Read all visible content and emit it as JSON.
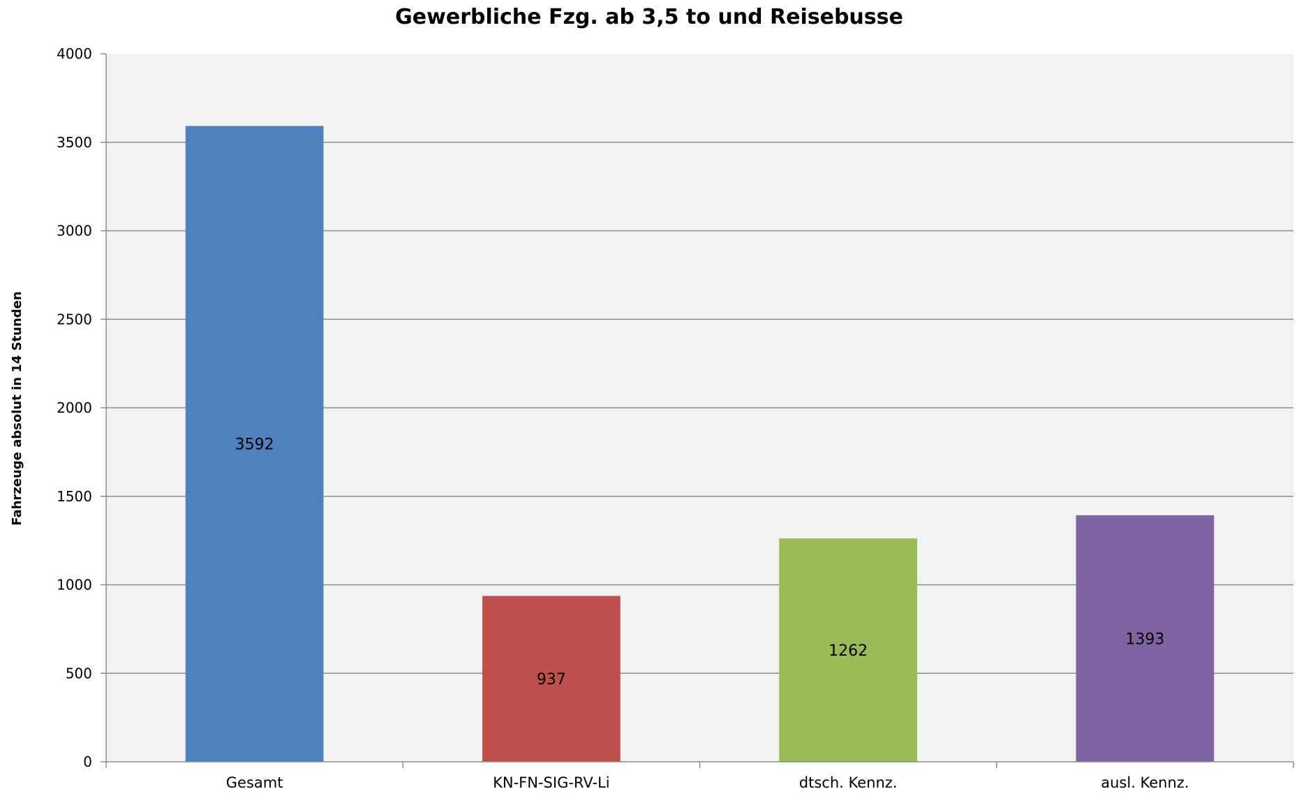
{
  "chart_data": {
    "type": "bar",
    "title": "Gewerbliche Fzg. ab 3,5 to und Reisebusse",
    "xlabel": "",
    "ylabel": "Fahrzeuge absolut in 14 Stunden",
    "categories": [
      "Gesamt",
      "KN-FN-SIG-RV-Li",
      "dtsch. Kennz.",
      "ausl. Kennz."
    ],
    "values": [
      3592,
      937,
      1262,
      1393
    ],
    "data_labels": [
      "3592",
      "937",
      "1262",
      "1393"
    ],
    "colors": [
      "#4f81bd",
      "#c0504d",
      "#9bbb59",
      "#8064a2"
    ],
    "ylim": [
      0,
      4000
    ],
    "yticks": [
      0,
      500,
      1000,
      1500,
      2000,
      2500,
      3000,
      3500,
      4000
    ],
    "grid": true,
    "plot_background": "#f2f2f2",
    "gridline_color": "#8c8c8c",
    "legend": "none"
  }
}
